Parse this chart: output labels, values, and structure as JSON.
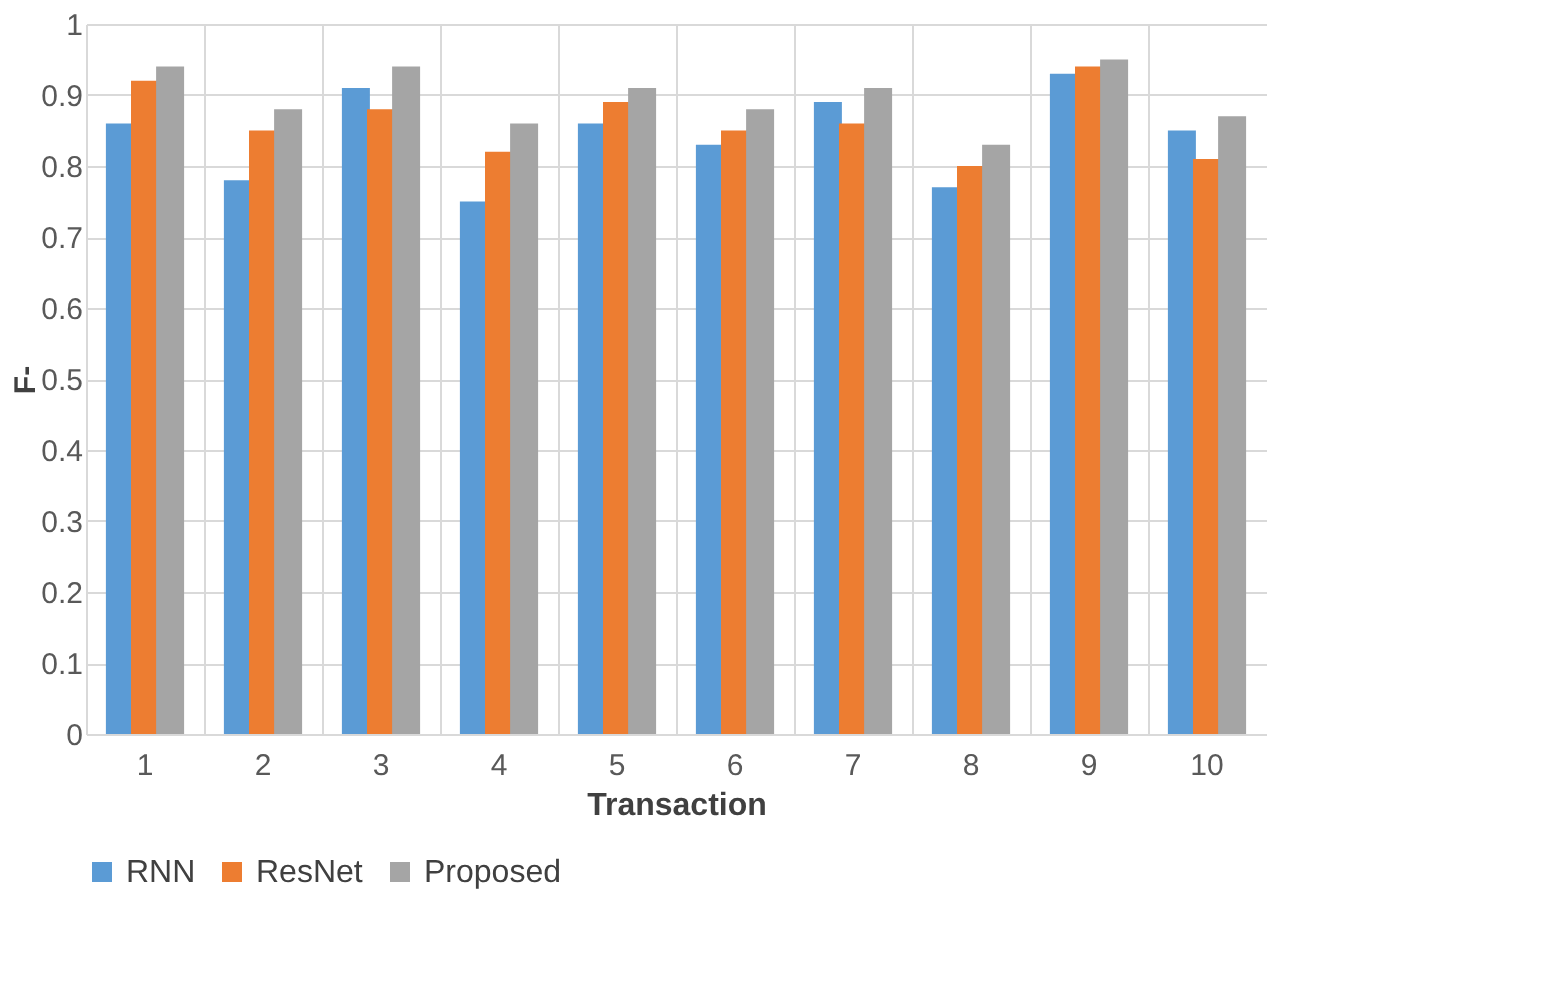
{
  "chart_data": {
    "type": "bar",
    "xlabel": "Transaction",
    "ylabel": "F-",
    "categories": [
      "1",
      "2",
      "3",
      "4",
      "5",
      "6",
      "7",
      "8",
      "9",
      "10"
    ],
    "series": [
      {
        "name": "RNN",
        "color": "#5b9bd5",
        "values": [
          0.86,
          0.78,
          0.91,
          0.75,
          0.86,
          0.83,
          0.89,
          0.77,
          0.93,
          0.85
        ]
      },
      {
        "name": "ResNet",
        "color": "#ed7d31",
        "values": [
          0.92,
          0.85,
          0.88,
          0.82,
          0.89,
          0.85,
          0.86,
          0.8,
          0.94,
          0.81
        ]
      },
      {
        "name": "Proposed",
        "color": "#a5a5a5",
        "values": [
          0.94,
          0.88,
          0.94,
          0.86,
          0.91,
          0.88,
          0.91,
          0.83,
          0.95,
          0.87
        ]
      }
    ],
    "ylim": [
      0,
      1
    ],
    "yticks": [
      0,
      0.1,
      0.2,
      0.3,
      0.4,
      0.5,
      0.6,
      0.7,
      0.8,
      0.9,
      1
    ],
    "grid": true,
    "legend": "bottom"
  }
}
